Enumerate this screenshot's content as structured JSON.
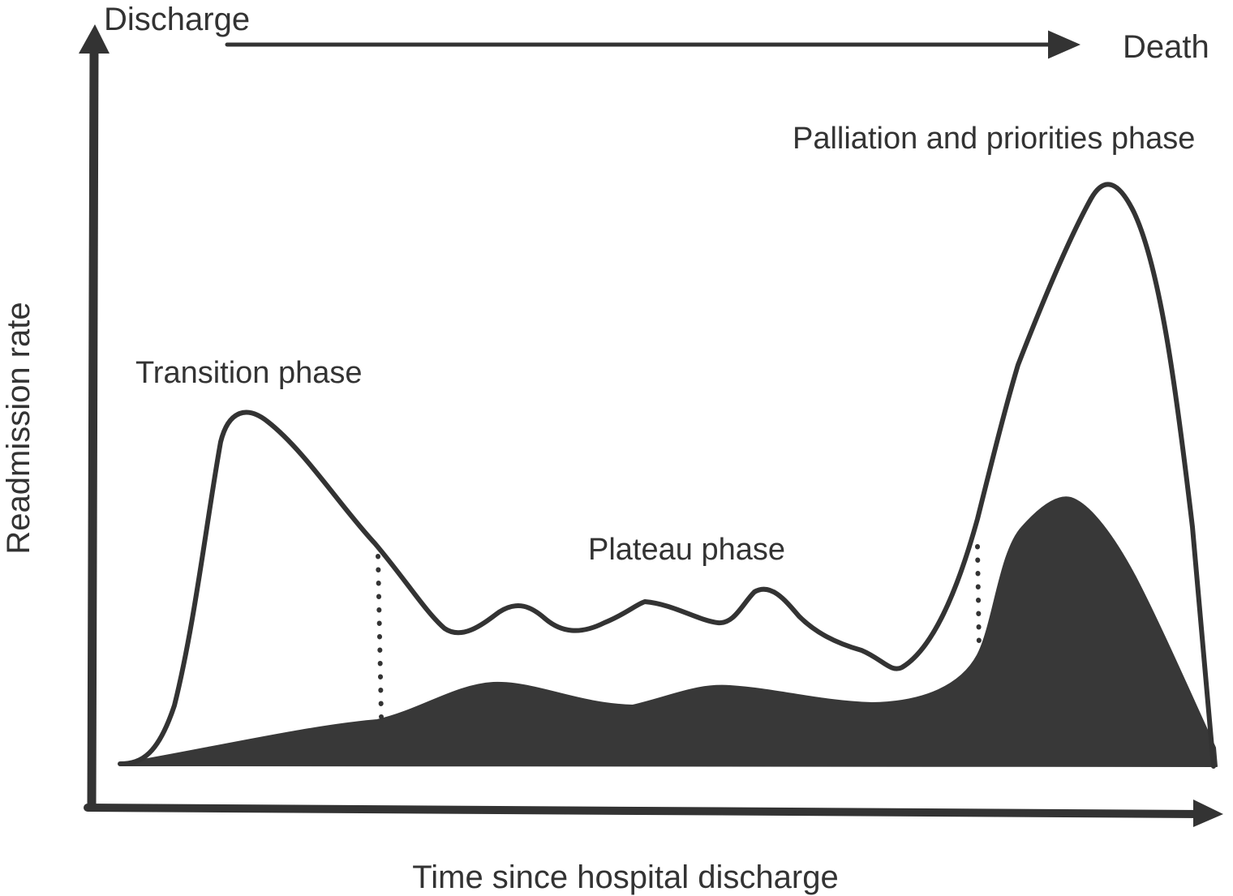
{
  "timeline": {
    "start_label": "Discharge",
    "end_label": "Death"
  },
  "axes": {
    "y_label": "Readmission rate",
    "x_label": "Time since hospital discharge"
  },
  "phases": {
    "transition": "Transition phase",
    "plateau": "Plateau phase",
    "palliation": "Palliation and priorities phase"
  },
  "colors": {
    "ink": "#333333",
    "fill": "#383838",
    "background": "#ffffff"
  }
}
